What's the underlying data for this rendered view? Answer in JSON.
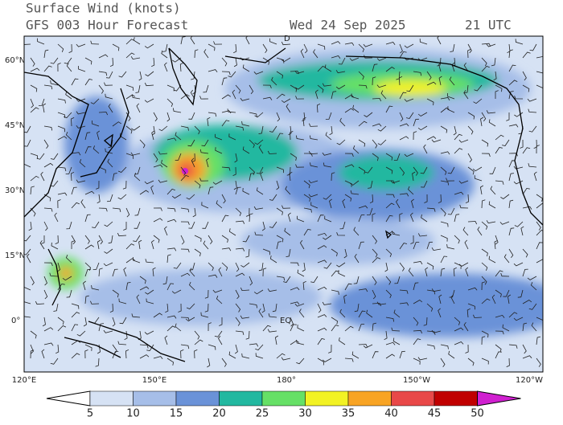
{
  "header": {
    "title": "Surface Wind (knots)",
    "subtitle": "GFS 003 Hour Forecast",
    "date": "Wed 24 Sep 2025",
    "time": "21 UTC"
  },
  "map": {
    "lat_labels": [
      "60°N",
      "45°N",
      "30°N",
      "15°N",
      "0°"
    ],
    "lon_labels": [
      "120°E",
      "150°E",
      "180°",
      "150°W",
      "120°W"
    ],
    "markers": [
      "D",
      "EQ"
    ]
  },
  "colorbar": {
    "labels": [
      "5",
      "10",
      "15",
      "20",
      "25",
      "30",
      "35",
      "40",
      "45",
      "50"
    ],
    "colors": [
      "#ffffff",
      "#d6e2f4",
      "#a6bee8",
      "#6a92d8",
      "#22b8a0",
      "#66e066",
      "#f2f224",
      "#f8a424",
      "#e84848",
      "#c00000",
      "#d020d0"
    ]
  }
}
